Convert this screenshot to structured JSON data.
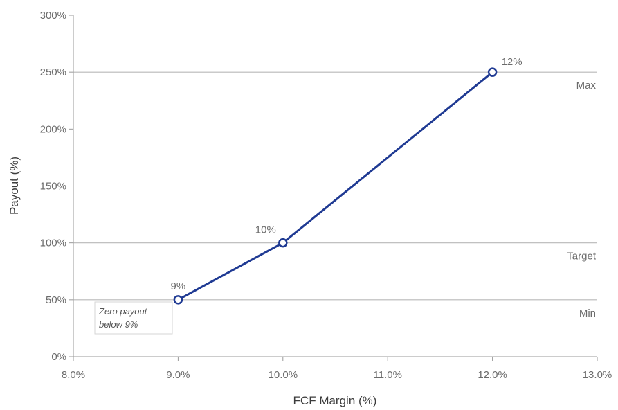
{
  "chart_data": {
    "type": "line",
    "xlabel": "FCF Margin (%)",
    "ylabel": "Payout (%)",
    "xlim": [
      8.0,
      13.0
    ],
    "ylim": [
      0,
      300
    ],
    "x_ticks": [
      8.0,
      9.0,
      10.0,
      11.0,
      12.0,
      13.0
    ],
    "x_tick_labels": [
      "8.0%",
      "9.0%",
      "10.0%",
      "11.0%",
      "12.0%",
      "13.0%"
    ],
    "y_ticks": [
      0,
      50,
      100,
      150,
      200,
      250,
      300
    ],
    "y_tick_labels": [
      "0%",
      "50%",
      "100%",
      "150%",
      "200%",
      "250%",
      "300%"
    ],
    "grid": false,
    "series": [
      {
        "x": [
          9.0,
          10.0,
          12.0
        ],
        "y": [
          50,
          100,
          250
        ],
        "labels": [
          "9%",
          "10%",
          "12%"
        ]
      }
    ],
    "reference_lines": [
      {
        "y": 250,
        "label": "Max"
      },
      {
        "y": 100,
        "label": "Target"
      },
      {
        "y": 50,
        "label": "Min"
      }
    ],
    "annotation": {
      "lines": [
        "Zero payout",
        "below 9%"
      ]
    },
    "colors": {
      "line": "#1f3a93",
      "reference": "#b8b8b8",
      "axis": "#9a9a9a"
    }
  }
}
